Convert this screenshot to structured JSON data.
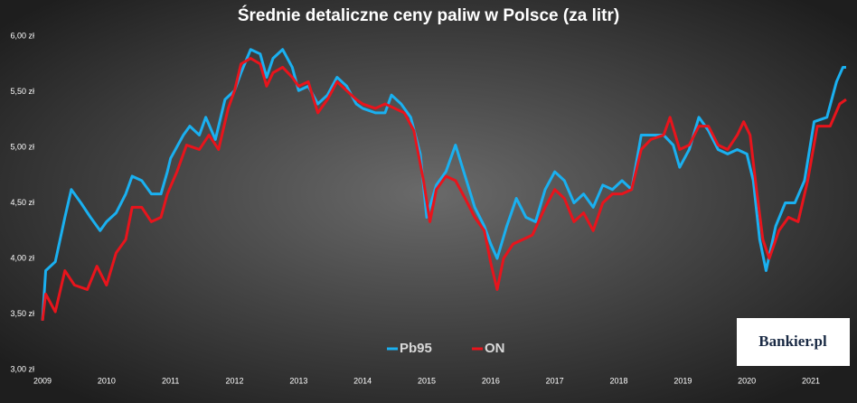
{
  "chart_data": {
    "type": "line",
    "title": "Średnie detaliczne ceny paliw w Polsce (za litr)",
    "logo": "Bankier.pl",
    "xlim": [
      2009,
      2021.7
    ],
    "xticks": [
      2009,
      2010,
      2011,
      2012,
      2013,
      2014,
      2015,
      2016,
      2017,
      2018,
      2019,
      2020,
      2021
    ],
    "ylim": [
      3,
      6
    ],
    "yticks": [
      {
        "value": 3,
        "label": "3,00 zł"
      },
      {
        "value": 3.5,
        "label": "3,50 zł"
      },
      {
        "value": 4,
        "label": "4,00 zł"
      },
      {
        "value": 4.5,
        "label": "4,50 zł"
      },
      {
        "value": 5,
        "label": "5,00 zł"
      },
      {
        "value": 5.5,
        "label": "5,50 zł"
      },
      {
        "value": 6,
        "label": "6,00 zł"
      }
    ],
    "grid": false,
    "legend": "bottom",
    "series": [
      {
        "name": "Pb95",
        "color": "#1ab0f0",
        "x": [
          2009.0,
          2009.05,
          2009.2,
          2009.35,
          2009.45,
          2009.6,
          2009.75,
          2009.9,
          2010.0,
          2010.15,
          2010.3,
          2010.4,
          2010.55,
          2010.7,
          2010.85,
          2010.95,
          2011.0,
          2011.2,
          2011.3,
          2011.45,
          2011.55,
          2011.7,
          2011.85,
          2012.0,
          2012.1,
          2012.25,
          2012.4,
          2012.5,
          2012.6,
          2012.75,
          2012.9,
          2013.0,
          2013.15,
          2013.3,
          2013.45,
          2013.6,
          2013.75,
          2013.9,
          2014.0,
          2014.2,
          2014.35,
          2014.45,
          2014.6,
          2014.75,
          2014.9,
          2015.0,
          2015.15,
          2015.3,
          2015.45,
          2015.6,
          2015.75,
          2015.9,
          2016.0,
          2016.1,
          2016.25,
          2016.4,
          2016.55,
          2016.7,
          2016.85,
          2017.0,
          2017.15,
          2017.3,
          2017.45,
          2017.6,
          2017.75,
          2017.9,
          2018.05,
          2018.2,
          2018.35,
          2018.5,
          2018.7,
          2018.85,
          2018.95,
          2019.1,
          2019.25,
          2019.4,
          2019.55,
          2019.7,
          2019.85,
          2020.0,
          2020.1,
          2020.2,
          2020.3,
          2020.45,
          2020.6,
          2020.75,
          2020.9,
          2021.05,
          2021.25,
          2021.4,
          2021.5,
          2021.55
        ],
        "values": [
          3.44,
          3.89,
          3.97,
          4.37,
          4.62,
          4.5,
          4.37,
          4.25,
          4.33,
          4.41,
          4.58,
          4.74,
          4.7,
          4.58,
          4.58,
          4.78,
          4.9,
          5.11,
          5.19,
          5.11,
          5.27,
          5.07,
          5.43,
          5.51,
          5.67,
          5.88,
          5.84,
          5.63,
          5.8,
          5.88,
          5.72,
          5.51,
          5.55,
          5.39,
          5.47,
          5.63,
          5.55,
          5.39,
          5.35,
          5.31,
          5.31,
          5.47,
          5.39,
          5.27,
          4.94,
          4.37,
          4.66,
          4.78,
          5.02,
          4.74,
          4.46,
          4.29,
          4.13,
          4.0,
          4.29,
          4.54,
          4.37,
          4.33,
          4.62,
          4.78,
          4.7,
          4.5,
          4.58,
          4.46,
          4.66,
          4.62,
          4.7,
          4.62,
          5.11,
          5.11,
          5.11,
          5.02,
          4.82,
          4.98,
          5.27,
          5.15,
          4.98,
          4.94,
          4.98,
          4.94,
          4.7,
          4.17,
          3.89,
          4.29,
          4.5,
          4.5,
          4.7,
          5.23,
          5.27,
          5.59,
          5.72,
          5.72
        ]
      },
      {
        "name": "ON",
        "color": "#e8141c",
        "x": [
          2009.0,
          2009.05,
          2009.2,
          2009.35,
          2009.5,
          2009.7,
          2009.85,
          2010.0,
          2010.15,
          2010.3,
          2010.4,
          2010.55,
          2010.7,
          2010.85,
          2010.95,
          2011.1,
          2011.25,
          2011.45,
          2011.6,
          2011.75,
          2011.9,
          2012.0,
          2012.1,
          2012.25,
          2012.4,
          2012.5,
          2012.6,
          2012.75,
          2012.9,
          2013.0,
          2013.15,
          2013.3,
          2013.45,
          2013.6,
          2013.75,
          2013.9,
          2014.0,
          2014.2,
          2014.35,
          2014.5,
          2014.65,
          2014.8,
          2014.95,
          2015.05,
          2015.15,
          2015.3,
          2015.45,
          2015.6,
          2015.75,
          2015.9,
          2016.0,
          2016.1,
          2016.2,
          2016.35,
          2016.5,
          2016.65,
          2016.85,
          2017.0,
          2017.15,
          2017.3,
          2017.45,
          2017.6,
          2017.75,
          2017.9,
          2018.05,
          2018.2,
          2018.35,
          2018.5,
          2018.7,
          2018.8,
          2018.95,
          2019.1,
          2019.25,
          2019.4,
          2019.55,
          2019.7,
          2019.85,
          2019.95,
          2020.05,
          2020.15,
          2020.25,
          2020.35,
          2020.5,
          2020.65,
          2020.8,
          2020.95,
          2021.1,
          2021.3,
          2021.45,
          2021.55
        ],
        "values": [
          3.44,
          3.68,
          3.52,
          3.89,
          3.76,
          3.72,
          3.93,
          3.76,
          4.05,
          4.17,
          4.46,
          4.46,
          4.33,
          4.37,
          4.58,
          4.78,
          5.02,
          4.98,
          5.11,
          4.98,
          5.35,
          5.51,
          5.75,
          5.8,
          5.75,
          5.55,
          5.67,
          5.72,
          5.63,
          5.55,
          5.59,
          5.31,
          5.43,
          5.59,
          5.51,
          5.43,
          5.39,
          5.35,
          5.39,
          5.35,
          5.31,
          5.15,
          4.7,
          4.33,
          4.62,
          4.74,
          4.7,
          4.54,
          4.37,
          4.25,
          3.96,
          3.72,
          4.0,
          4.13,
          4.17,
          4.21,
          4.46,
          4.62,
          4.54,
          4.33,
          4.41,
          4.25,
          4.5,
          4.58,
          4.58,
          4.62,
          4.98,
          5.07,
          5.11,
          5.27,
          4.98,
          5.02,
          5.19,
          5.19,
          5.02,
          4.98,
          5.11,
          5.23,
          5.11,
          4.62,
          4.17,
          4.0,
          4.25,
          4.37,
          4.33,
          4.7,
          5.19,
          5.19,
          5.39,
          5.43
        ]
      }
    ]
  }
}
